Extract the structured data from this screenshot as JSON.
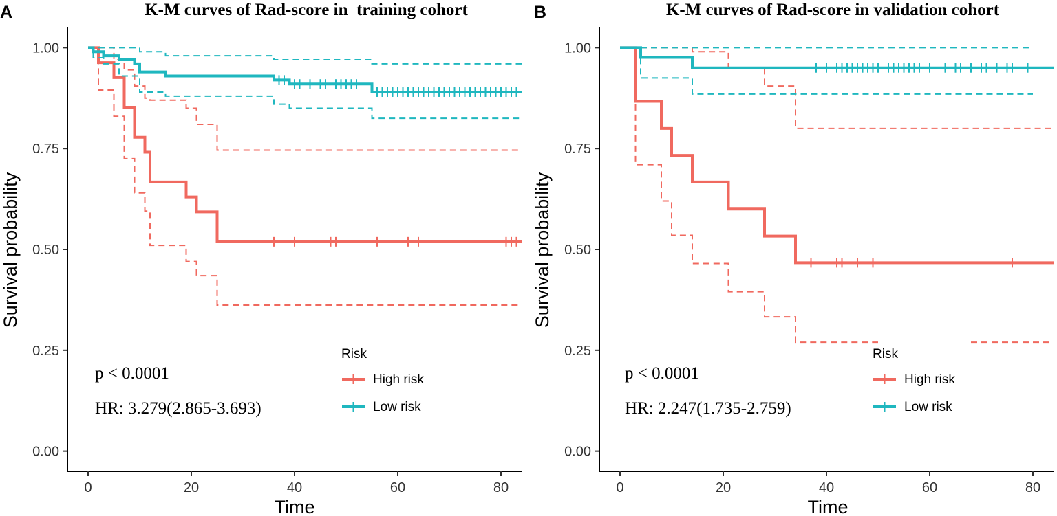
{
  "colors": {
    "high": "#f0695f",
    "low": "#1fb7bf",
    "axis": "#000000"
  },
  "chart_data": [
    {
      "panel_label": "A",
      "type": "line",
      "title": "K-M curves of Rad-score in  training cohort",
      "xlabel": "Time",
      "ylabel": "Survival probability",
      "xlim": [
        -4,
        84
      ],
      "ylim": [
        -0.05,
        1.05
      ],
      "xticks": [
        0,
        20,
        40,
        60,
        80
      ],
      "xtick_labels": [
        "0",
        "20",
        "40",
        "60",
        "80"
      ],
      "yticks": [
        0,
        0.25,
        0.5,
        0.75,
        1.0
      ],
      "ytick_labels": [
        "0.00",
        "0.25",
        "0.50",
        "0.75",
        "1.00"
      ],
      "annotations": [
        "p < 0.0001",
        "HR: 3.279(2.865-3.693)"
      ],
      "legend": {
        "title": "Risk",
        "entries": [
          "High risk",
          "Low risk"
        ]
      },
      "series": [
        {
          "name": "High risk",
          "color_key": "high",
          "steps": [
            [
              0,
              1.0
            ],
            [
              2,
              0.963
            ],
            [
              5,
              0.926
            ],
            [
              7,
              0.852
            ],
            [
              9,
              0.778
            ],
            [
              11,
              0.741
            ],
            [
              12,
              0.667
            ],
            [
              19,
              0.63
            ],
            [
              21,
              0.593
            ],
            [
              25,
              0.519
            ],
            [
              84,
              0.519
            ]
          ],
          "upper": [
            [
              0,
              1.0
            ],
            [
              2,
              1.0
            ],
            [
              5,
              0.97
            ],
            [
              7,
              0.945
            ],
            [
              9,
              0.905
            ],
            [
              11,
              0.875
            ],
            [
              12,
              0.87
            ],
            [
              19,
              0.85
            ],
            [
              21,
              0.81
            ],
            [
              25,
              0.746
            ],
            [
              84,
              0.746
            ]
          ],
          "lower": [
            [
              0,
              1.0
            ],
            [
              2,
              0.895
            ],
            [
              5,
              0.83
            ],
            [
              7,
              0.725
            ],
            [
              9,
              0.64
            ],
            [
              11,
              0.595
            ],
            [
              12,
              0.51
            ],
            [
              19,
              0.47
            ],
            [
              21,
              0.435
            ],
            [
              25,
              0.362
            ],
            [
              84,
              0.362
            ]
          ],
          "censors": [
            36,
            40,
            47,
            48,
            56,
            62,
            64,
            81,
            82,
            83
          ]
        },
        {
          "name": "Low risk",
          "color_key": "low",
          "steps": [
            [
              0,
              1.0
            ],
            [
              1,
              0.99
            ],
            [
              3,
              0.98
            ],
            [
              6,
              0.97
            ],
            [
              9,
              0.96
            ],
            [
              10,
              0.94
            ],
            [
              15,
              0.93
            ],
            [
              36,
              0.92
            ],
            [
              39,
              0.91
            ],
            [
              55,
              0.89
            ],
            [
              84,
              0.89
            ]
          ],
          "upper": [
            [
              0,
              1.0
            ],
            [
              3,
              1.0
            ],
            [
              10,
              0.99
            ],
            [
              15,
              0.98
            ],
            [
              36,
              0.97
            ],
            [
              55,
              0.96
            ],
            [
              84,
              0.96
            ]
          ],
          "lower": [
            [
              0,
              1.0
            ],
            [
              1,
              0.975
            ],
            [
              3,
              0.96
            ],
            [
              6,
              0.93
            ],
            [
              10,
              0.89
            ],
            [
              15,
              0.88
            ],
            [
              36,
              0.86
            ],
            [
              39,
              0.85
            ],
            [
              55,
              0.825
            ],
            [
              84,
              0.825
            ]
          ],
          "censors": [
            37,
            38,
            40,
            41,
            43,
            45,
            46,
            48,
            49,
            50,
            51,
            52,
            56,
            57,
            58,
            59,
            60,
            61,
            62,
            63,
            64,
            65,
            66,
            67,
            68,
            69,
            70,
            71,
            72,
            73,
            74,
            75,
            76,
            77,
            78,
            79,
            80,
            81,
            82,
            83
          ]
        }
      ]
    },
    {
      "panel_label": "B",
      "type": "line",
      "title": "K-M curves of Rad-score in validation cohort",
      "xlabel": "Time",
      "ylabel": "Survival probability",
      "xlim": [
        -4,
        84
      ],
      "ylim": [
        -0.05,
        1.05
      ],
      "xticks": [
        0,
        20,
        40,
        60,
        80
      ],
      "xtick_labels": [
        "0",
        "20",
        "40",
        "60",
        "80"
      ],
      "yticks": [
        0,
        0.25,
        0.5,
        0.75,
        1.0
      ],
      "ytick_labels": [
        "0.00",
        "0.25",
        "0.50",
        "0.75",
        "1.00"
      ],
      "annotations": [
        "p < 0.0001",
        "HR: 2.247(1.735-2.759)"
      ],
      "legend": {
        "title": "Risk",
        "entries": [
          "High risk",
          "Low risk"
        ]
      },
      "series": [
        {
          "name": "High risk",
          "color_key": "high",
          "steps": [
            [
              0,
              1.0
            ],
            [
              3,
              0.867
            ],
            [
              8,
              0.8
            ],
            [
              10,
              0.733
            ],
            [
              14,
              0.667
            ],
            [
              21,
              0.6
            ],
            [
              28,
              0.533
            ],
            [
              34,
              0.467
            ],
            [
              84,
              0.467
            ]
          ],
          "upper": [
            [
              0,
              1.0
            ],
            [
              3,
              1.0
            ],
            [
              14,
              0.99
            ],
            [
              21,
              0.95
            ],
            [
              28,
              0.905
            ],
            [
              34,
              0.8
            ],
            [
              84,
              0.8
            ]
          ],
          "lower": [
            [
              0,
              1.0
            ],
            [
              3,
              0.71
            ],
            [
              8,
              0.62
            ],
            [
              10,
              0.535
            ],
            [
              14,
              0.465
            ],
            [
              21,
              0.395
            ],
            [
              28,
              0.333
            ],
            [
              34,
              0.27
            ],
            [
              84,
              0.27
            ]
          ],
          "lower_gap": [
            50,
            68
          ],
          "censors": [
            37,
            42,
            43,
            46,
            49,
            76
          ]
        },
        {
          "name": "Low risk",
          "color_key": "low",
          "steps": [
            [
              0,
              1.0
            ],
            [
              4,
              0.976
            ],
            [
              14,
              0.95
            ],
            [
              84,
              0.95
            ]
          ],
          "upper": [
            [
              0,
              1.0
            ],
            [
              80,
              1.0
            ]
          ],
          "lower": [
            [
              0,
              1.0
            ],
            [
              4,
              0.925
            ],
            [
              14,
              0.885
            ],
            [
              80,
              0.885
            ]
          ],
          "censors": [
            38,
            40,
            42,
            43,
            44,
            45,
            46,
            47,
            48,
            49,
            50,
            52,
            53,
            54,
            55,
            56,
            57,
            58,
            60,
            63,
            65,
            66,
            68,
            70,
            71,
            73,
            75,
            76,
            79
          ]
        }
      ]
    }
  ]
}
